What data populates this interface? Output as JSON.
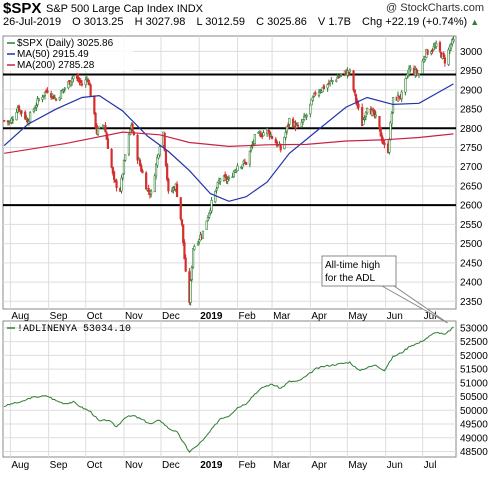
{
  "header": {
    "symbol": "$SPX",
    "name": "S&P 500 Large Cap Index",
    "exchange": "INDX",
    "watermark": "@ StockCharts.com",
    "date": "26-Jul-2019",
    "open_label": "O",
    "open": "3013.25",
    "high_label": "H",
    "high": "3027.98",
    "low_label": "L",
    "low": "3012.59",
    "close_label": "C",
    "close": "3025.86",
    "volume_label": "V",
    "volume": "1.7B",
    "chg_label": "Chg",
    "chg": "+22.19 (+0.74%)",
    "up_arrow": "▲"
  },
  "legend": {
    "price": "$SPX (Daily) 3025.86",
    "ma50": "MA(50) 2915.49",
    "ma200": "MA(200) 2785.28"
  },
  "adl_legend": "!ADLINENYA 53034.10",
  "annotation": {
    "line1": "All-time high",
    "line2": "for the ADL"
  },
  "colors": {
    "up_bar": "#2e7d32",
    "down_bar": "#d32f2f",
    "ma50": "#2233aa",
    "ma200": "#cc2244",
    "adl": "#2e7d32",
    "grid": "#dddddd",
    "hline": "#000000"
  },
  "chart_data": [
    {
      "type": "candlestick",
      "title": "$SPX (Daily) 3025.86",
      "x_ticks": [
        "Aug",
        "Sep",
        "Oct",
        "Nov",
        "Dec",
        "2019",
        "Feb",
        "Mar",
        "Apr",
        "May",
        "Jun",
        "Jul"
      ],
      "y_ticks": [
        2350,
        2400,
        2450,
        2500,
        2550,
        2600,
        2650,
        2700,
        2750,
        2800,
        2850,
        2900,
        2950,
        3000
      ],
      "ylim": [
        2330,
        3040
      ],
      "horizontal_lines": [
        2600,
        2800,
        2940
      ],
      "price_path": [
        [
          "2018-07-27",
          2820
        ],
        [
          "2018-08-01",
          2815
        ],
        [
          "2018-08-07",
          2855
        ],
        [
          "2018-08-15",
          2820
        ],
        [
          "2018-08-24",
          2875
        ],
        [
          "2018-08-31",
          2900
        ],
        [
          "2018-09-07",
          2875
        ],
        [
          "2018-09-14",
          2905
        ],
        [
          "2018-09-21",
          2935
        ],
        [
          "2018-09-28",
          2915
        ],
        [
          "2018-10-03",
          2930
        ],
        [
          "2018-10-10",
          2790
        ],
        [
          "2018-10-16",
          2810
        ],
        [
          "2018-10-24",
          2660
        ],
        [
          "2018-10-29",
          2640
        ],
        [
          "2018-11-02",
          2730
        ],
        [
          "2018-11-07",
          2810
        ],
        [
          "2018-11-12",
          2725
        ],
        [
          "2018-11-20",
          2640
        ],
        [
          "2018-11-23",
          2630
        ],
        [
          "2018-11-30",
          2760
        ],
        [
          "2018-12-03",
          2790
        ],
        [
          "2018-12-07",
          2630
        ],
        [
          "2018-12-13",
          2650
        ],
        [
          "2018-12-18",
          2545
        ],
        [
          "2018-12-21",
          2420
        ],
        [
          "2018-12-24",
          2351
        ],
        [
          "2018-12-27",
          2490
        ],
        [
          "2019-01-04",
          2530
        ],
        [
          "2019-01-10",
          2595
        ],
        [
          "2019-01-18",
          2670
        ],
        [
          "2019-01-25",
          2665
        ],
        [
          "2019-02-01",
          2705
        ],
        [
          "2019-02-08",
          2710
        ],
        [
          "2019-02-15",
          2775
        ],
        [
          "2019-02-25",
          2795
        ],
        [
          "2019-03-08",
          2745
        ],
        [
          "2019-03-15",
          2822
        ],
        [
          "2019-03-22",
          2800
        ],
        [
          "2019-03-29",
          2834
        ],
        [
          "2019-04-05",
          2892
        ],
        [
          "2019-04-12",
          2907
        ],
        [
          "2019-04-23",
          2933
        ],
        [
          "2019-04-30",
          2945
        ],
        [
          "2019-05-03",
          2945
        ],
        [
          "2019-05-07",
          2885
        ],
        [
          "2019-05-13",
          2811
        ],
        [
          "2019-05-17",
          2860
        ],
        [
          "2019-05-24",
          2826
        ],
        [
          "2019-05-31",
          2752
        ],
        [
          "2019-06-03",
          2744
        ],
        [
          "2019-06-07",
          2873
        ],
        [
          "2019-06-14",
          2886
        ],
        [
          "2019-06-20",
          2954
        ],
        [
          "2019-06-28",
          2941
        ],
        [
          "2019-07-03",
          2995
        ],
        [
          "2019-07-12",
          3013
        ],
        [
          "2019-07-19",
          2976
        ],
        [
          "2019-07-24",
          3019
        ],
        [
          "2019-07-26",
          3025.86
        ]
      ],
      "ma50_path": [
        [
          "2018-07-27",
          2755
        ],
        [
          "2018-08-15",
          2810
        ],
        [
          "2018-09-07",
          2850
        ],
        [
          "2018-09-28",
          2880
        ],
        [
          "2018-10-12",
          2885
        ],
        [
          "2018-10-31",
          2845
        ],
        [
          "2018-11-20",
          2780
        ],
        [
          "2018-12-07",
          2740
        ],
        [
          "2018-12-24",
          2690
        ],
        [
          "2019-01-10",
          2630
        ],
        [
          "2019-01-25",
          2610
        ],
        [
          "2019-02-08",
          2622
        ],
        [
          "2019-02-25",
          2660
        ],
        [
          "2019-03-15",
          2735
        ],
        [
          "2019-04-05",
          2790
        ],
        [
          "2019-04-30",
          2855
        ],
        [
          "2019-05-17",
          2880
        ],
        [
          "2019-06-07",
          2862
        ],
        [
          "2019-06-28",
          2865
        ],
        [
          "2019-07-26",
          2915.49
        ]
      ],
      "ma200_path": [
        [
          "2018-07-27",
          2735
        ],
        [
          "2018-09-14",
          2760
        ],
        [
          "2018-10-31",
          2790
        ],
        [
          "2018-11-30",
          2783
        ],
        [
          "2018-12-24",
          2763
        ],
        [
          "2019-01-25",
          2753
        ],
        [
          "2019-02-25",
          2757
        ],
        [
          "2019-03-29",
          2758
        ],
        [
          "2019-04-30",
          2767
        ],
        [
          "2019-05-31",
          2770
        ],
        [
          "2019-06-28",
          2776
        ],
        [
          "2019-07-26",
          2785.28
        ]
      ]
    },
    {
      "type": "line",
      "title": "!ADLINENYA 53034.10",
      "x_ticks": [
        "Aug",
        "Sep",
        "Oct",
        "Nov",
        "Dec",
        "2019",
        "Feb",
        "Mar",
        "Apr",
        "May",
        "Jun",
        "Jul"
      ],
      "y_ticks": [
        48500,
        49000,
        49500,
        50000,
        50500,
        51000,
        51500,
        52000,
        52500,
        53000
      ],
      "ylim": [
        48300,
        53250
      ],
      "path": [
        [
          "2018-07-27",
          50150
        ],
        [
          "2018-08-03",
          50250
        ],
        [
          "2018-08-10",
          50300
        ],
        [
          "2018-08-17",
          50450
        ],
        [
          "2018-08-24",
          50500
        ],
        [
          "2018-08-31",
          50520
        ],
        [
          "2018-09-07",
          50350
        ],
        [
          "2018-09-14",
          50250
        ],
        [
          "2018-09-21",
          50300
        ],
        [
          "2018-09-28",
          50100
        ],
        [
          "2018-10-05",
          49950
        ],
        [
          "2018-10-12",
          49600
        ],
        [
          "2018-10-19",
          49650
        ],
        [
          "2018-10-26",
          49400
        ],
        [
          "2018-11-02",
          49750
        ],
        [
          "2018-11-09",
          49800
        ],
        [
          "2018-11-16",
          49650
        ],
        [
          "2018-11-23",
          49500
        ],
        [
          "2018-11-30",
          49650
        ],
        [
          "2018-12-07",
          49350
        ],
        [
          "2018-12-14",
          49200
        ],
        [
          "2018-12-21",
          48700
        ],
        [
          "2018-12-24",
          48480
        ],
        [
          "2019-01-04",
          48900
        ],
        [
          "2019-01-11",
          49300
        ],
        [
          "2019-01-18",
          49700
        ],
        [
          "2019-01-25",
          49800
        ],
        [
          "2019-02-01",
          50100
        ],
        [
          "2019-02-08",
          50250
        ],
        [
          "2019-02-15",
          50600
        ],
        [
          "2019-02-22",
          50850
        ],
        [
          "2019-03-01",
          50950
        ],
        [
          "2019-03-08",
          50800
        ],
        [
          "2019-03-15",
          51050
        ],
        [
          "2019-03-22",
          51050
        ],
        [
          "2019-03-29",
          51250
        ],
        [
          "2019-04-05",
          51500
        ],
        [
          "2019-04-12",
          51600
        ],
        [
          "2019-04-19",
          51650
        ],
        [
          "2019-04-26",
          51700
        ],
        [
          "2019-05-03",
          51750
        ],
        [
          "2019-05-10",
          51450
        ],
        [
          "2019-05-17",
          51550
        ],
        [
          "2019-05-24",
          51650
        ],
        [
          "2019-05-31",
          51450
        ],
        [
          "2019-06-07",
          51950
        ],
        [
          "2019-06-14",
          52100
        ],
        [
          "2019-06-21",
          52350
        ],
        [
          "2019-06-28",
          52450
        ],
        [
          "2019-07-05",
          52650
        ],
        [
          "2019-07-12",
          52850
        ],
        [
          "2019-07-19",
          52750
        ],
        [
          "2019-07-26",
          53034.1
        ]
      ]
    }
  ]
}
